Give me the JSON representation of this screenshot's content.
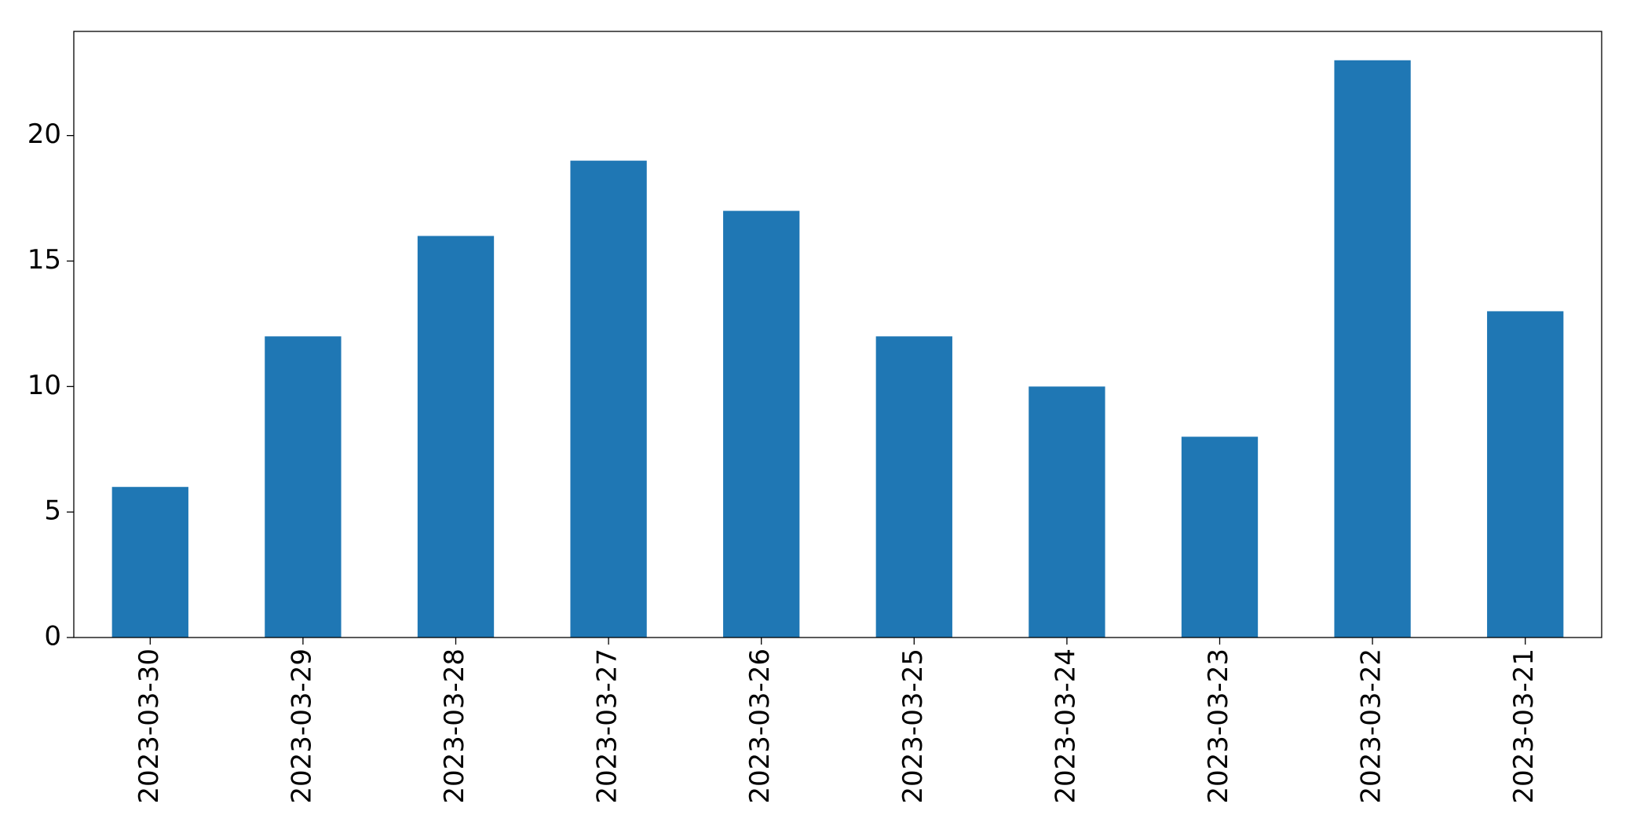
{
  "chart_data": {
    "type": "bar",
    "categories": [
      "2023-03-30",
      "2023-03-29",
      "2023-03-28",
      "2023-03-27",
      "2023-03-26",
      "2023-03-25",
      "2023-03-24",
      "2023-03-23",
      "2023-03-22",
      "2023-03-21"
    ],
    "values": [
      6,
      12,
      16,
      19,
      17,
      12,
      10,
      8,
      23,
      13
    ],
    "color": "#1f77b4",
    "ylim": [
      0,
      24.15
    ],
    "yticks": [
      0,
      5,
      10,
      15,
      20
    ],
    "grid": false
  }
}
